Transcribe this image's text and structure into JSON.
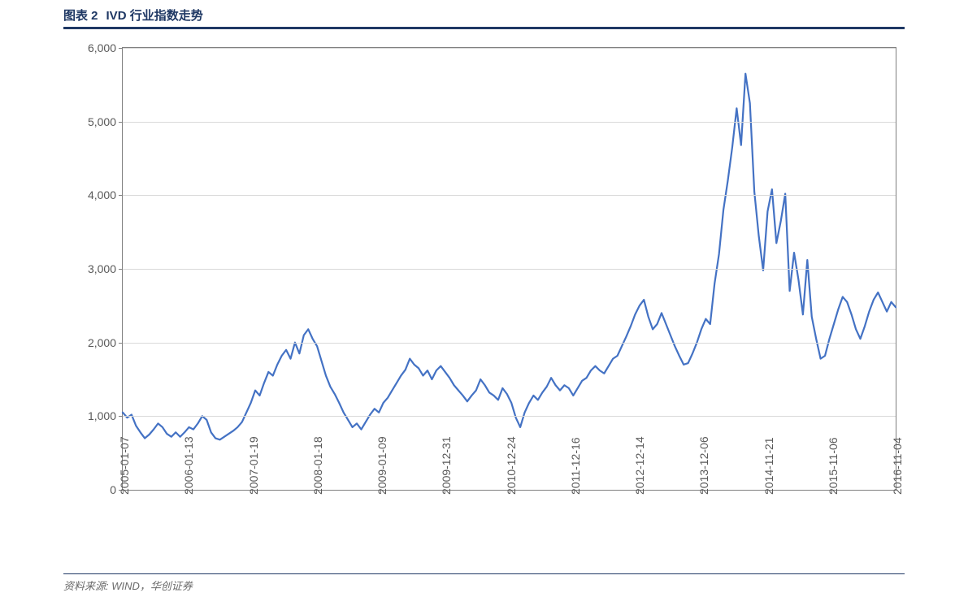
{
  "chart": {
    "type": "line",
    "title_prefix": "图表  2",
    "title_text": "IVD 行业指数走势",
    "title_color": "#1f3864",
    "title_fontsize": 15,
    "underline_color": "#1f3864",
    "source_text": "资料来源: WIND，华创证券",
    "source_color": "#6a6a6a",
    "source_fontsize": 13,
    "background_color": "#ffffff",
    "plot_border_color": "#7f7f7f",
    "grid_color": "#d9d9d9",
    "axis_label_color": "#595959",
    "axis_label_fontsize": 14,
    "line_color": "#4472c4",
    "line_width": 2.2,
    "ylim": [
      0,
      6000
    ],
    "ytick_step": 1000,
    "ytick_labels": [
      "0",
      "1,000",
      "2,000",
      "3,000",
      "4,000",
      "5,000",
      "6,000"
    ],
    "xlim": [
      0,
      156
    ],
    "xtick_positions": [
      0,
      13,
      26,
      39,
      52,
      65,
      78,
      91,
      104,
      117,
      130,
      143
    ],
    "xtick_labels": [
      "2005-01-07",
      "2006-01-13",
      "2007-01-19",
      "2008-01-18",
      "2009-01-09",
      "2009-12-31",
      "2010-12-24",
      "2011-12-16",
      "2012-12-14",
      "2013-12-06",
      "2014-11-21",
      "2015-11-06",
      "2016-11-04"
    ],
    "xtick_label_positions": [
      0,
      13,
      26,
      39,
      52,
      65,
      78,
      91,
      104,
      117,
      130,
      143,
      156
    ],
    "series": {
      "values": [
        1050,
        980,
        1020,
        870,
        780,
        700,
        750,
        820,
        900,
        850,
        760,
        720,
        780,
        720,
        780,
        850,
        820,
        900,
        1000,
        950,
        780,
        700,
        680,
        720,
        760,
        800,
        850,
        920,
        1050,
        1180,
        1350,
        1280,
        1450,
        1600,
        1550,
        1700,
        1820,
        1900,
        1780,
        2000,
        1850,
        2100,
        2180,
        2050,
        1950,
        1750,
        1550,
        1400,
        1300,
        1180,
        1050,
        950,
        850,
        900,
        820,
        920,
        1020,
        1100,
        1050,
        1180,
        1250,
        1350,
        1450,
        1550,
        1630,
        1780,
        1700,
        1650,
        1550,
        1620,
        1500,
        1620,
        1680,
        1600,
        1520,
        1420,
        1350,
        1280,
        1200,
        1280,
        1350,
        1500,
        1420,
        1320,
        1280,
        1220,
        1380,
        1300,
        1180,
        980,
        850,
        1050,
        1180,
        1280,
        1220,
        1320,
        1400,
        1520,
        1420,
        1350,
        1420,
        1380,
        1280,
        1380,
        1480,
        1520,
        1620,
        1680,
        1620,
        1580,
        1680,
        1780,
        1820,
        1950,
        2080,
        2220,
        2380,
        2500,
        2580,
        2350,
        2180,
        2250,
        2400,
        2250,
        2100,
        1950,
        1820,
        1700,
        1720,
        1850,
        2000,
        2180,
        2320,
        2250,
        2800,
        3200,
        3800,
        4200,
        4650,
        5180,
        4680,
        5650,
        5250,
        4050,
        3450,
        2980,
        3780,
        4080,
        3350,
        3650,
        4020,
        2700,
        3220,
        2850,
        2380,
        3120,
        2350,
        2050,
        1780,
        1820,
        2050,
        2250,
        2450,
        2620,
        2550,
        2380,
        2180,
        2050,
        2220,
        2420,
        2580,
        2680,
        2550,
        2420,
        2550,
        2480
      ]
    }
  }
}
